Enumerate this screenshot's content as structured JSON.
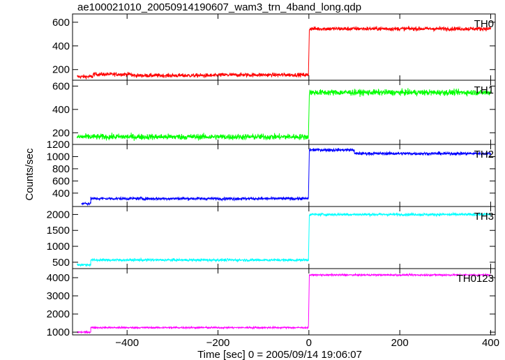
{
  "chart_data": {
    "type": "line",
    "title": "ae100021010_20050914190607_wam3_trn_4band_long.qdp",
    "xlabel": "Time [sec] 0 = 2005/09/14 19:06:07",
    "ylabel": "Counts/sec",
    "xlim": [
      -520,
      410
    ],
    "x_ticks": [
      -400,
      -200,
      0,
      200,
      400
    ],
    "x_tick_labels": [
      "−400",
      "−200",
      "0",
      "200",
      "400"
    ],
    "grid": false,
    "panels": [
      {
        "name": "TH0",
        "color": "#ff0000",
        "ylim": [
          110,
          670
        ],
        "y_ticks": [
          200,
          400,
          600
        ],
        "x_start": -510,
        "segments": [
          {
            "x": [
              -510,
              -475
            ],
            "level": 140
          },
          {
            "x": [
              -475,
              -390
            ],
            "level": 160
          },
          {
            "x": [
              -390,
              -200
            ],
            "level": 150
          },
          {
            "x": [
              -200,
              -1
            ],
            "level": 155
          },
          {
            "x": [
              1,
              400
            ],
            "level": 545
          }
        ],
        "noise": 16
      },
      {
        "name": "TH1",
        "color": "#00ff00",
        "ylim": [
          100,
          650
        ],
        "y_ticks": [
          200,
          400,
          600
        ],
        "x_start": -510,
        "segments": [
          {
            "x": [
              -510,
              -1
            ],
            "level": 165
          },
          {
            "x": [
              1,
              400
            ],
            "level": 545
          }
        ],
        "noise": 24
      },
      {
        "name": "TH2",
        "color": "#0000ff",
        "ylim": [
          180,
          1200
        ],
        "y_ticks": [
          400,
          600,
          800,
          1000,
          1200
        ],
        "x_start": -500,
        "segments": [
          {
            "x": [
              -500,
              -480
            ],
            "level": 230
          },
          {
            "x": [
              -480,
              -1
            ],
            "level": 310
          },
          {
            "x": [
              1,
              100
            ],
            "level": 1110
          },
          {
            "x": [
              100,
              400
            ],
            "level": 1050
          }
        ],
        "noise": 24
      },
      {
        "name": "TH3",
        "color": "#00ffff",
        "ylim": [
          300,
          2250
        ],
        "y_ticks": [
          500,
          1000,
          1500,
          2000
        ],
        "x_start": -510,
        "segments": [
          {
            "x": [
              -510,
              -480
            ],
            "level": 420
          },
          {
            "x": [
              -480,
              -1
            ],
            "level": 570
          },
          {
            "x": [
              1,
              400
            ],
            "level": 2000
          }
        ],
        "noise": 40
      },
      {
        "name": "TH0123",
        "color": "#ff00ff",
        "ylim": [
          850,
          4500
        ],
        "y_ticks": [
          1000,
          2000,
          3000,
          4000
        ],
        "x_start": -510,
        "segments": [
          {
            "x": [
              -510,
              -480
            ],
            "level": 1000
          },
          {
            "x": [
              -480,
              -1
            ],
            "level": 1250
          },
          {
            "x": [
              1,
              400
            ],
            "level": 4150
          }
        ],
        "noise": 45
      }
    ]
  }
}
